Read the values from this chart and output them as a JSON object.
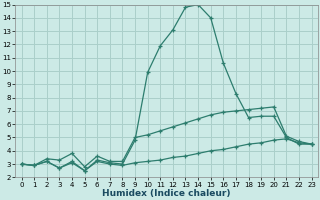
{
  "xlabel": "Humidex (Indice chaleur)",
  "x": [
    0,
    1,
    2,
    3,
    4,
    5,
    6,
    7,
    8,
    9,
    10,
    11,
    12,
    13,
    14,
    15,
    16,
    17,
    18,
    19,
    20,
    21,
    22,
    23
  ],
  "line1": [
    3.0,
    2.9,
    3.2,
    2.7,
    3.2,
    2.5,
    3.3,
    3.1,
    3.0,
    4.8,
    9.9,
    11.9,
    13.1,
    14.8,
    15.0,
    14.0,
    10.6,
    8.3,
    6.5,
    6.6,
    6.6,
    5.0,
    4.5,
    4.5
  ],
  "line2": [
    3.0,
    2.9,
    3.4,
    3.3,
    3.8,
    2.8,
    3.6,
    3.2,
    3.2,
    5.0,
    5.2,
    5.5,
    5.8,
    6.1,
    6.4,
    6.7,
    6.9,
    7.0,
    7.1,
    7.2,
    7.3,
    5.1,
    4.7,
    4.5
  ],
  "line3": [
    3.0,
    2.9,
    3.2,
    2.7,
    3.1,
    2.5,
    3.2,
    3.0,
    2.9,
    3.1,
    3.2,
    3.3,
    3.5,
    3.6,
    3.8,
    4.0,
    4.1,
    4.3,
    4.5,
    4.6,
    4.8,
    4.9,
    4.6,
    4.5
  ],
  "line_color": "#2d7d6e",
  "bg_color": "#cceae6",
  "grid_color": "#aacfca",
  "ylim_min": 2,
  "ylim_max": 15,
  "xlim_min": -0.5,
  "xlim_max": 23.5,
  "yticks": [
    2,
    3,
    4,
    5,
    6,
    7,
    8,
    9,
    10,
    11,
    12,
    13,
    14,
    15
  ],
  "xticks": [
    0,
    1,
    2,
    3,
    4,
    5,
    6,
    7,
    8,
    9,
    10,
    11,
    12,
    13,
    14,
    15,
    16,
    17,
    18,
    19,
    20,
    21,
    22,
    23
  ],
  "tick_fontsize": 5.0,
  "xlabel_fontsize": 6.5
}
